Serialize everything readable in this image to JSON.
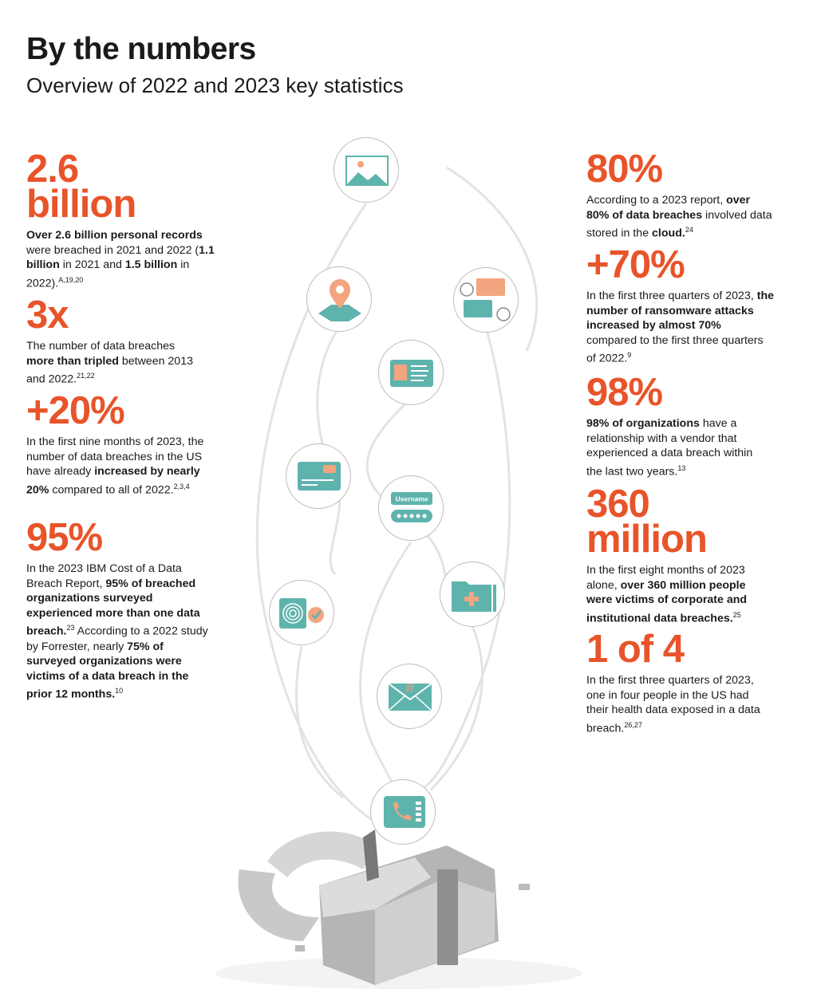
{
  "header": {
    "title": "By the numbers",
    "subtitle": "Overview of 2022 and 2023 key statistics"
  },
  "colors": {
    "accent": "#e8542a",
    "icon": "#5fb3ad",
    "icon_accent": "#f2a57f"
  },
  "left": [
    {
      "big": [
        "2.6",
        "billion"
      ],
      "body": [
        {
          "t": "Over 2.6 billion personal records",
          "b": true
        },
        {
          "t": " were breached in 2021 and 2022 ("
        },
        {
          "t": "1.1 billion",
          "b": true
        },
        {
          "t": " in 2021 and "
        },
        {
          "t": "1.5 billion",
          "b": true
        },
        {
          "t": " in 2022)."
        },
        {
          "t": "A,19,20",
          "sup": true
        }
      ]
    },
    {
      "big": [
        "3x"
      ],
      "body": [
        {
          "t": "The number of data breaches "
        },
        {
          "t": "more than tripled",
          "b": true
        },
        {
          "t": " between 2013 and 2022."
        },
        {
          "t": "21,22",
          "sup": true
        }
      ]
    },
    {
      "big": [
        "+20%"
      ],
      "body": [
        {
          "t": "In the first nine months of 2023, the number of data breaches in the US have already "
        },
        {
          "t": "increased by nearly 20%",
          "b": true
        },
        {
          "t": " compared to all of 2022."
        },
        {
          "t": "2,3,4",
          "sup": true
        }
      ]
    },
    {
      "big": [
        "95%"
      ],
      "body": [
        {
          "t": "In the 2023 IBM Cost of a Data Breach Report, "
        },
        {
          "t": "95% of breached organizations surveyed experienced more than one data breach.",
          "b": true
        },
        {
          "t": "23",
          "sup": true
        },
        {
          "t": " According to a 2022 study by Forrester, nearly "
        },
        {
          "t": "75% of surveyed organizations were victims of a data breach in the prior 12 months.",
          "b": true
        },
        {
          "t": "10",
          "sup": true
        }
      ]
    }
  ],
  "right": [
    {
      "big": [
        "80%"
      ],
      "body": [
        {
          "t": "According to a 2023 report, "
        },
        {
          "t": "over 80% of data breaches",
          "b": true
        },
        {
          "t": " involved data stored in the "
        },
        {
          "t": "cloud.",
          "b": true
        },
        {
          "t": "24",
          "sup": true
        }
      ]
    },
    {
      "big": [
        "+70%"
      ],
      "body": [
        {
          "t": "In the first three quarters of 2023, "
        },
        {
          "t": "the number of ransomware attacks increased by almost 70%",
          "b": true
        },
        {
          "t": " compared to the first three quarters of 2022."
        },
        {
          "t": "9",
          "sup": true
        }
      ]
    },
    {
      "big": [
        "98%"
      ],
      "body": [
        {
          "t": "98% of organizations",
          "b": true
        },
        {
          "t": " have a relationship with a vendor that experienced a data breach within the last two years."
        },
        {
          "t": "13",
          "sup": true
        }
      ]
    },
    {
      "big": [
        "360",
        "million"
      ],
      "body": [
        {
          "t": "In the first eight months of 2023 alone, "
        },
        {
          "t": "over 360 million people were victims of corporate and institutional data breaches.",
          "b": true
        },
        {
          "t": "25",
          "sup": true
        }
      ]
    },
    {
      "big": [
        "1 of 4"
      ],
      "body": [
        {
          "t": "In the first three quarters of 2023, one in four people in the US had their health data exposed in a data breach."
        },
        {
          "t": "26,27",
          "sup": true
        }
      ]
    }
  ],
  "icons": {
    "username_label": "Username",
    "email_symbol": "@",
    "names": [
      "image-icon",
      "location-pin-icon",
      "chat-icon",
      "id-card-icon",
      "credit-card-icon",
      "username-password-icon",
      "medical-folder-icon",
      "fingerprint-icon",
      "email-icon",
      "phone-icon",
      "broken-padlock-icon"
    ]
  }
}
